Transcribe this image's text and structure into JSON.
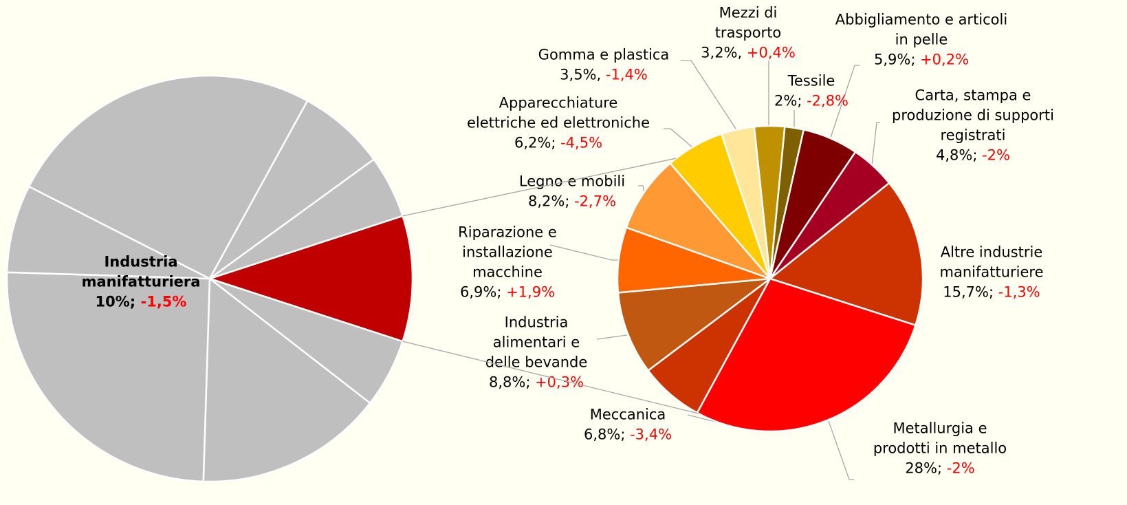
{
  "chart_data": [
    {
      "type": "pie",
      "slices": [
        {
          "name": [
            "Industria",
            "manifatturiera"
          ],
          "value": 10,
          "value_label": "10%",
          "separator": ";",
          "change": -1.5,
          "change_label": "-1,5%",
          "color": "#c00000"
        },
        {
          "name": null,
          "value": 5.5,
          "color": "#bfbfbf"
        },
        {
          "name": null,
          "value": 15,
          "color": "#bfbfbf"
        },
        {
          "name": null,
          "value": 25,
          "color": "#bfbfbf"
        },
        {
          "name": null,
          "value": 7,
          "color": "#bfbfbf"
        },
        {
          "name": null,
          "value": 25.5,
          "color": "#bfbfbf"
        },
        {
          "name": null,
          "value": 7,
          "color": "#bfbfbf"
        },
        {
          "name": null,
          "value": 5,
          "color": "#bfbfbf"
        }
      ]
    },
    {
      "type": "pie",
      "slices": [
        {
          "name": [
            "Mezzi di",
            "trasporto"
          ],
          "value": 3.2,
          "value_label": "3,2%",
          "separator": ",",
          "change": 0.4,
          "change_label": "+0,4%",
          "color": "#bf9000"
        },
        {
          "name": [
            "Tessile"
          ],
          "value": 2,
          "value_label": "2%",
          "separator": ";",
          "change": -2.8,
          "change_label": "-2,8%",
          "color": "#7f6000"
        },
        {
          "name": [
            "Abbigliamento e articoli",
            "in pelle"
          ],
          "value": 5.9,
          "value_label": "5,9%",
          "separator": ";",
          "change": 0.2,
          "change_label": "+0,2%",
          "color": "#7f0000"
        },
        {
          "name": [
            "Carta, stampa e",
            "produzione di supporti",
            "registrati"
          ],
          "value": 4.8,
          "value_label": "4,8%",
          "separator": ";",
          "change": -2,
          "change_label": "-2%",
          "color": "#a50021"
        },
        {
          "name": [
            "Altre industrie",
            "manifatturiere"
          ],
          "value": 15.7,
          "value_label": "15,7%",
          "separator": ";",
          "change": -1.3,
          "change_label": "-1,3%",
          "color": "#cc3300"
        },
        {
          "name": [
            "Metallurgia e",
            "prodotti in metallo"
          ],
          "value": 28,
          "value_label": "28%",
          "separator": ";",
          "change": -2,
          "change_label": "-2%",
          "color": "#ff0000"
        },
        {
          "name": [
            "Meccanica"
          ],
          "value": 6.8,
          "value_label": "6,8%",
          "separator": ";",
          "change": -3.4,
          "change_label": "-3,4%",
          "color": "#cc3300"
        },
        {
          "name": [
            "Industria",
            "alimentari e",
            "delle bevande"
          ],
          "value": 8.8,
          "value_label": "8,8%",
          "separator": ";",
          "change": 0.3,
          "change_label": "+0,3%",
          "color": "#c05812"
        },
        {
          "name": [
            "Riparazione e",
            "installazione",
            "macchine"
          ],
          "value": 6.9,
          "value_label": "6,9%",
          "separator": ";",
          "change": 1.9,
          "change_label": "+1,9%",
          "color": "#ff6600"
        },
        {
          "name": [
            "Legno e mobili"
          ],
          "value": 8.2,
          "value_label": "8,2%",
          "separator": ";",
          "change": -2.7,
          "change_label": "-2,7%",
          "color": "#ff9933"
        },
        {
          "name": [
            "Apparecchiature",
            "elettriche ed elettroniche"
          ],
          "value": 6.2,
          "value_label": "6,2%",
          "separator": ";",
          "change": -4.5,
          "change_label": "-4,5%",
          "color": "#ffcc00"
        },
        {
          "name": [
            "Gomma e plastica"
          ],
          "value": 3.5,
          "value_label": "3,5%",
          "separator": ",",
          "change": -1.4,
          "change_label": "-1,4%",
          "color": "#ffe699"
        }
      ]
    }
  ]
}
